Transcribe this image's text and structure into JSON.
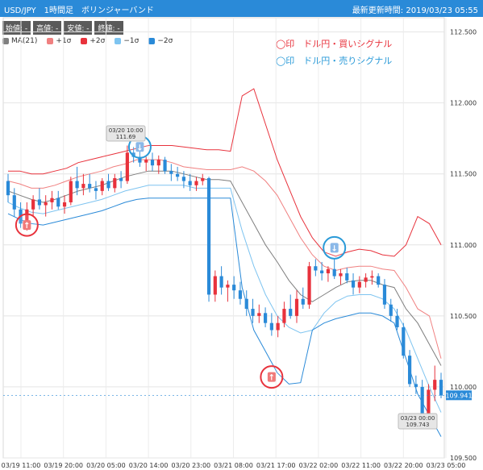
{
  "header": {
    "title": "USD/JPY　1時間足　ボリンジャーバンド",
    "updated": "最新更新時間: 2019/03/23 05:55"
  },
  "ohlc": [
    "始値: -",
    "高値: -",
    "安値: -",
    "終値: -"
  ],
  "legend": [
    {
      "label": "MA(21)",
      "color": "#7f7f7f"
    },
    {
      "label": "+1σ",
      "color": "#f08080"
    },
    {
      "label": "+2σ",
      "color": "#e8323c"
    },
    {
      "label": "−1σ",
      "color": "#7ec4f0"
    },
    {
      "label": "−2σ",
      "color": "#2a8ad8"
    }
  ],
  "signals": {
    "buy": "◯印　ドル円・買いシグナル",
    "sell": "◯印　ドル円・売りシグナル"
  },
  "chart_data": {
    "type": "candlestick",
    "title": "USD/JPY 1時間足 ボリンジャーバンド",
    "ylim": [
      109.5,
      112.6
    ],
    "yticks": [
      "112.500",
      "112.000",
      "111.500",
      "111.000",
      "110.500",
      "110.000",
      "109.500"
    ],
    "xticks": [
      "03/19 11:00",
      "03/19 20:00",
      "03/20 05:00",
      "03/20 14:00",
      "03/20 23:00",
      "03/21 08:00",
      "03/21 17:00",
      "03/22 02:00",
      "03/22 11:00",
      "03/22 20:00",
      "03/23 05:00"
    ],
    "candles": [
      [
        111.45,
        111.5,
        111.3,
        111.35
      ],
      [
        111.35,
        111.4,
        111.2,
        111.25
      ],
      [
        111.25,
        111.3,
        111.12,
        111.15
      ],
      [
        111.15,
        111.3,
        111.1,
        111.25
      ],
      [
        111.25,
        111.35,
        111.2,
        111.32
      ],
      [
        111.32,
        111.4,
        111.25,
        111.28
      ],
      [
        111.28,
        111.35,
        111.2,
        111.3
      ],
      [
        111.3,
        111.38,
        111.25,
        111.33
      ],
      [
        111.33,
        111.38,
        111.25,
        111.27
      ],
      [
        111.27,
        111.35,
        111.22,
        111.3
      ],
      [
        111.3,
        111.48,
        111.28,
        111.45
      ],
      [
        111.45,
        111.55,
        111.35,
        111.4
      ],
      [
        111.4,
        111.5,
        111.35,
        111.43
      ],
      [
        111.43,
        111.5,
        111.37,
        111.4
      ],
      [
        111.4,
        111.45,
        111.32,
        111.38
      ],
      [
        111.38,
        111.47,
        111.35,
        111.45
      ],
      [
        111.45,
        111.5,
        111.38,
        111.4
      ],
      [
        111.4,
        111.5,
        111.37,
        111.47
      ],
      [
        111.47,
        111.52,
        111.4,
        111.45
      ],
      [
        111.45,
        111.7,
        111.43,
        111.65
      ],
      [
        111.65,
        111.69,
        111.58,
        111.62
      ],
      [
        111.62,
        111.69,
        111.55,
        111.58
      ],
      [
        111.58,
        111.62,
        111.52,
        111.6
      ],
      [
        111.6,
        111.65,
        111.52,
        111.56
      ],
      [
        111.56,
        111.63,
        111.5,
        111.6
      ],
      [
        111.6,
        111.62,
        111.5,
        111.52
      ],
      [
        111.52,
        111.57,
        111.45,
        111.5
      ],
      [
        111.5,
        111.55,
        111.45,
        111.48
      ],
      [
        111.48,
        111.52,
        111.4,
        111.45
      ],
      [
        111.45,
        111.5,
        111.38,
        111.42
      ],
      [
        111.42,
        111.48,
        111.38,
        111.45
      ],
      [
        111.45,
        111.5,
        111.42,
        111.47
      ],
      [
        111.47,
        111.48,
        110.6,
        110.65
      ],
      [
        110.65,
        110.82,
        110.6,
        110.78
      ],
      [
        110.78,
        110.85,
        110.65,
        110.7
      ],
      [
        110.7,
        110.75,
        110.6,
        110.72
      ],
      [
        110.72,
        110.78,
        110.62,
        110.68
      ],
      [
        110.68,
        110.74,
        110.58,
        110.62
      ],
      [
        110.62,
        110.68,
        110.5,
        110.55
      ],
      [
        110.55,
        110.62,
        110.45,
        110.5
      ],
      [
        110.5,
        110.58,
        110.45,
        110.52
      ],
      [
        110.52,
        110.56,
        110.42,
        110.45
      ],
      [
        110.45,
        110.52,
        110.36,
        110.4
      ],
      [
        110.4,
        110.5,
        110.35,
        110.45
      ],
      [
        110.45,
        110.6,
        110.42,
        110.55
      ],
      [
        110.55,
        110.65,
        110.48,
        110.5
      ],
      [
        110.5,
        110.68,
        110.45,
        110.62
      ],
      [
        110.62,
        110.7,
        110.55,
        110.58
      ],
      [
        110.58,
        110.88,
        110.55,
        110.85
      ],
      [
        110.85,
        110.9,
        110.78,
        110.82
      ],
      [
        110.82,
        110.88,
        110.75,
        110.8
      ],
      [
        110.8,
        110.85,
        110.74,
        110.83
      ],
      [
        110.83,
        110.9,
        110.76,
        110.78
      ],
      [
        110.78,
        110.83,
        110.72,
        110.8
      ],
      [
        110.8,
        110.84,
        110.73,
        110.75
      ],
      [
        110.75,
        110.8,
        110.65,
        110.7
      ],
      [
        110.7,
        110.78,
        110.66,
        110.74
      ],
      [
        110.74,
        110.8,
        110.7,
        110.77
      ],
      [
        110.77,
        110.82,
        110.72,
        110.78
      ],
      [
        110.78,
        110.8,
        110.7,
        110.72
      ],
      [
        110.72,
        110.76,
        110.55,
        110.58
      ],
      [
        110.58,
        110.62,
        110.46,
        110.5
      ],
      [
        110.5,
        110.55,
        110.4,
        110.42
      ],
      [
        110.42,
        110.45,
        110.2,
        110.22
      ],
      [
        110.22,
        110.26,
        110.0,
        110.02
      ],
      [
        110.02,
        110.08,
        109.95,
        110.0
      ],
      [
        110.0,
        110.05,
        109.74,
        109.76
      ],
      [
        109.76,
        110.02,
        109.74,
        109.98
      ],
      [
        109.98,
        110.15,
        109.9,
        110.05
      ],
      [
        110.05,
        110.1,
        109.92,
        109.94
      ]
    ],
    "bands": {
      "plus2": [
        111.52,
        111.52,
        111.5,
        111.5,
        111.52,
        111.54,
        111.58,
        111.6,
        111.62,
        111.64,
        111.66,
        111.68,
        111.7,
        111.7,
        111.7,
        111.69,
        111.68,
        111.67,
        111.67,
        111.66,
        112.05,
        112.1,
        111.85,
        111.6,
        111.4,
        111.2,
        111.05,
        110.95,
        110.92,
        110.95,
        110.97,
        110.96,
        110.93,
        110.92,
        111.0,
        111.2,
        111.15,
        111.0
      ],
      "plus1": [
        111.45,
        111.43,
        111.4,
        111.4,
        111.42,
        111.45,
        111.48,
        111.5,
        111.52,
        111.55,
        111.57,
        111.6,
        111.6,
        111.6,
        111.58,
        111.55,
        111.54,
        111.53,
        111.53,
        111.53,
        111.55,
        111.52,
        111.45,
        111.35,
        111.2,
        111.05,
        110.93,
        110.85,
        110.82,
        110.84,
        110.85,
        110.85,
        110.83,
        110.82,
        110.7,
        110.55,
        110.5,
        110.2
      ],
      "ma": [
        111.38,
        111.35,
        111.32,
        111.3,
        111.32,
        111.35,
        111.38,
        111.4,
        111.42,
        111.45,
        111.48,
        111.5,
        111.52,
        111.52,
        111.52,
        111.5,
        111.48,
        111.46,
        111.46,
        111.45,
        111.3,
        111.15,
        111.0,
        110.88,
        110.75,
        110.65,
        110.6,
        110.65,
        110.7,
        110.74,
        110.75,
        110.75,
        110.72,
        110.7,
        110.55,
        110.45,
        110.3,
        110.15
      ],
      "minus1": [
        111.3,
        111.26,
        111.23,
        111.22,
        111.24,
        111.26,
        111.28,
        111.3,
        111.32,
        111.35,
        111.38,
        111.4,
        111.42,
        111.42,
        111.42,
        111.42,
        111.4,
        111.4,
        111.4,
        111.4,
        111.1,
        110.85,
        110.65,
        110.5,
        110.42,
        110.38,
        110.4,
        110.52,
        110.6,
        110.64,
        110.65,
        110.65,
        110.62,
        110.55,
        110.4,
        110.2,
        110.0,
        109.82
      ],
      "minus2": [
        111.22,
        111.18,
        111.15,
        111.14,
        111.16,
        111.18,
        111.2,
        111.22,
        111.24,
        111.27,
        111.3,
        111.32,
        111.33,
        111.33,
        111.33,
        111.33,
        111.33,
        111.33,
        111.33,
        111.33,
        110.7,
        110.4,
        110.25,
        110.1,
        110.02,
        110.03,
        110.4,
        110.45,
        110.48,
        110.5,
        110.52,
        110.52,
        110.5,
        110.45,
        110.2,
        109.95,
        109.8,
        109.65
      ]
    },
    "markers": [
      {
        "type": "buy",
        "label": "↑",
        "candle": 3,
        "price": 111.14
      },
      {
        "type": "sell",
        "label": "↓",
        "candle": 21,
        "price": 111.69
      },
      {
        "type": "buy",
        "label": "↑",
        "candle": 42,
        "price": 110.07
      },
      {
        "type": "sell",
        "label": "↓",
        "candle": 52,
        "price": 110.98
      }
    ],
    "annotations": [
      {
        "date": "03/20 10:00",
        "price": "111.69"
      },
      {
        "date": "03/23 00:00",
        "price": "109.743"
      }
    ],
    "last_price": "109.941"
  },
  "colors": {
    "up": "#e8323c",
    "down": "#2a8ad8",
    "buy_marker": "#e8323c",
    "sell_marker": "#2a9ad8",
    "header": "#2a8ad8"
  }
}
